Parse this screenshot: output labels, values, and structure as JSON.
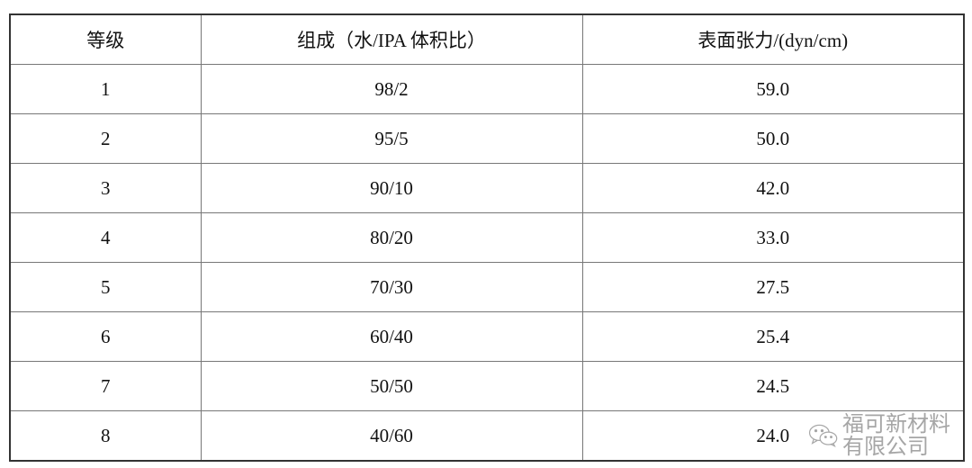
{
  "table": {
    "headers": [
      "等级",
      "组成（水/IPA 体积比）",
      "表面张力/(dyn/cm)"
    ],
    "rows": [
      [
        "1",
        "98/2",
        "59.0"
      ],
      [
        "2",
        "95/5",
        "50.0"
      ],
      [
        "3",
        "90/10",
        "42.0"
      ],
      [
        "4",
        "80/20",
        "33.0"
      ],
      [
        "5",
        "70/30",
        "27.5"
      ],
      [
        "6",
        "60/40",
        "25.4"
      ],
      [
        "7",
        "50/50",
        "24.5"
      ],
      [
        "8",
        "40/60",
        "24.0"
      ]
    ]
  },
  "watermark": {
    "icon": "wechat-icon",
    "text": "福可新材料有限公司"
  }
}
